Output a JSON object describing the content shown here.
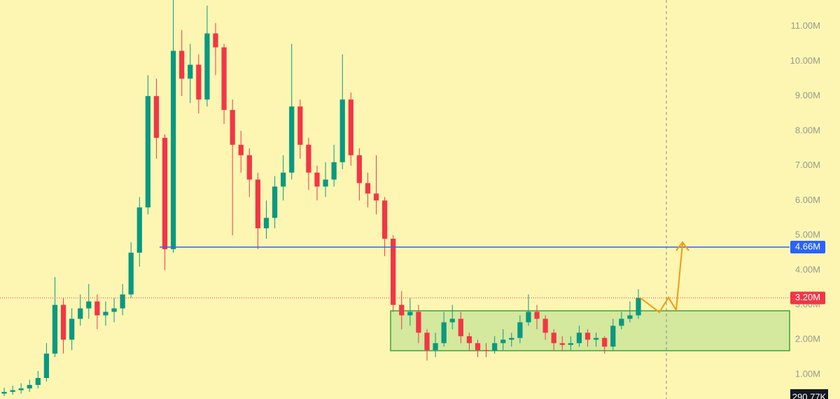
{
  "chart_data": {
    "type": "candlestick",
    "up_color": "#089981",
    "down_color": "#f23645",
    "open": [
      0.45,
      0.5,
      0.55,
      0.6,
      0.7,
      0.9,
      1.6,
      3.0,
      2.0,
      2.6,
      2.9,
      3.1,
      2.7,
      2.8,
      2.9,
      3.3,
      4.5,
      5.8,
      9.0,
      7.8,
      4.6,
      10.3,
      9.5,
      9.9,
      8.9,
      10.8,
      10.4,
      8.6,
      7.6,
      7.3,
      6.6,
      5.2,
      5.5,
      6.4,
      6.8,
      8.7,
      7.6,
      6.8,
      6.4,
      6.6,
      7.1,
      8.9,
      7.3,
      6.5,
      6.2,
      6.0,
      4.9,
      3.0,
      2.7,
      2.8,
      2.2,
      1.7,
      1.9,
      2.5,
      2.6,
      2.1,
      1.9,
      1.7,
      1.68,
      1.9,
      2.0,
      2.05,
      2.5,
      2.8,
      2.6,
      2.2,
      1.9,
      1.85,
      1.9,
      2.2,
      2.0,
      2.05,
      1.8,
      2.4,
      2.6,
      2.7
    ],
    "high": [
      0.62,
      0.68,
      0.75,
      0.85,
      1.1,
      1.9,
      3.8,
      3.2,
      2.9,
      3.3,
      3.6,
      3.3,
      3.1,
      3.2,
      3.6,
      4.8,
      6.1,
      9.6,
      9.5,
      7.9,
      11.76,
      10.9,
      10.5,
      10.2,
      11.6,
      11.1,
      10.5,
      8.9,
      8.0,
      7.5,
      6.8,
      6.0,
      6.7,
      7.3,
      10.5,
      8.9,
      7.8,
      7.0,
      7.1,
      7.6,
      10.2,
      9.1,
      7.5,
      6.8,
      7.3,
      6.1,
      5.0,
      3.4,
      3.2,
      3.0,
      2.3,
      2.2,
      2.8,
      3.0,
      2.8,
      2.2,
      2.0,
      1.9,
      2.1,
      2.3,
      2.2,
      2.7,
      3.3,
      3.0,
      2.7,
      2.3,
      2.1,
      2.1,
      2.4,
      2.3,
      2.2,
      2.1,
      2.6,
      2.8,
      3.1,
      3.45
    ],
    "low": [
      0.38,
      0.42,
      0.45,
      0.5,
      0.6,
      0.8,
      1.5,
      1.6,
      1.7,
      2.4,
      2.6,
      2.3,
      2.4,
      2.5,
      2.7,
      3.2,
      4.1,
      5.6,
      7.2,
      4.0,
      4.5,
      9.0,
      8.8,
      8.5,
      8.7,
      9.6,
      8.2,
      5.0,
      6.8,
      6.1,
      4.6,
      4.9,
      5.2,
      6.0,
      6.6,
      7.2,
      6.3,
      6.0,
      6.1,
      6.4,
      6.9,
      7.0,
      6.0,
      5.8,
      5.6,
      4.4,
      2.8,
      2.3,
      2.4,
      1.9,
      1.4,
      1.5,
      1.8,
      2.3,
      1.9,
      1.7,
      1.5,
      1.5,
      1.6,
      1.7,
      1.8,
      1.9,
      2.4,
      2.3,
      2.0,
      1.7,
      1.7,
      1.7,
      1.8,
      1.8,
      1.8,
      1.6,
      1.7,
      2.3,
      2.5,
      2.6
    ],
    "close": [
      0.5,
      0.55,
      0.6,
      0.7,
      0.9,
      1.6,
      3.0,
      2.0,
      2.6,
      2.9,
      3.1,
      2.7,
      2.8,
      2.9,
      3.3,
      4.5,
      5.8,
      9.0,
      7.8,
      4.6,
      10.3,
      9.5,
      9.9,
      8.9,
      10.8,
      10.4,
      8.6,
      7.6,
      7.3,
      6.6,
      5.2,
      5.5,
      6.4,
      6.8,
      8.7,
      7.6,
      6.8,
      6.4,
      6.6,
      7.1,
      8.9,
      7.3,
      6.5,
      6.2,
      6.0,
      4.9,
      3.0,
      2.7,
      2.8,
      2.2,
      1.7,
      1.9,
      2.5,
      2.6,
      2.1,
      1.9,
      1.7,
      1.68,
      1.9,
      2.0,
      2.05,
      2.5,
      2.8,
      2.6,
      2.2,
      1.9,
      1.85,
      1.9,
      2.2,
      2.0,
      2.05,
      1.8,
      2.4,
      2.6,
      2.7,
      3.2
    ],
    "ylim": [
      0.296,
      11.76
    ],
    "yticks": [
      {
        "value": 1,
        "label": "1.00M"
      },
      {
        "value": 2,
        "label": "2.00M"
      },
      {
        "value": 3,
        "label": "3.00M"
      },
      {
        "value": 4,
        "label": "4.00M"
      },
      {
        "value": 5,
        "label": "5.00M"
      },
      {
        "value": 6,
        "label": "6.00M"
      },
      {
        "value": 7,
        "label": "7.00M"
      },
      {
        "value": 8,
        "label": "8.00M"
      },
      {
        "value": 9,
        "label": "9.00M"
      },
      {
        "value": 10,
        "label": "10.00M"
      },
      {
        "value": 11,
        "label": "11.00M"
      }
    ],
    "price_lines": [
      {
        "value": 4.66,
        "label": "4.66M",
        "color": "#2962ff"
      },
      {
        "value": 3.2,
        "label": "3.20M",
        "color": "#f23645"
      }
    ],
    "volume_label": "290.77K"
  }
}
